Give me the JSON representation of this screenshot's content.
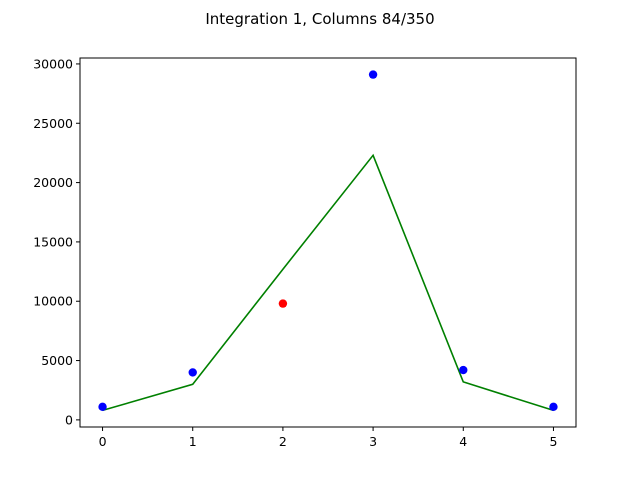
{
  "chart_data": {
    "type": "scatter",
    "title": "Integration 1, Columns 84/350",
    "xlabel": "",
    "ylabel": "",
    "xlim": [
      -0.25,
      5.25
    ],
    "ylim": [
      -600,
      30500
    ],
    "x_ticks": [
      0,
      1,
      2,
      3,
      4,
      5
    ],
    "y_ticks": [
      0,
      5000,
      10000,
      15000,
      20000,
      25000,
      30000
    ],
    "grid": false,
    "series": [
      {
        "kind": "scatter",
        "color": "#0000ff",
        "x": [
          0,
          1,
          3,
          4,
          5
        ],
        "y": [
          1100,
          4000,
          29100,
          4200,
          1100
        ]
      },
      {
        "kind": "scatter",
        "color": "#ff0000",
        "x": [
          2
        ],
        "y": [
          9800
        ]
      },
      {
        "kind": "line",
        "color": "#008000",
        "x": [
          0,
          1,
          2,
          3,
          4,
          5
        ],
        "y": [
          800,
          3000,
          12700,
          22300,
          3200,
          800
        ]
      }
    ]
  }
}
